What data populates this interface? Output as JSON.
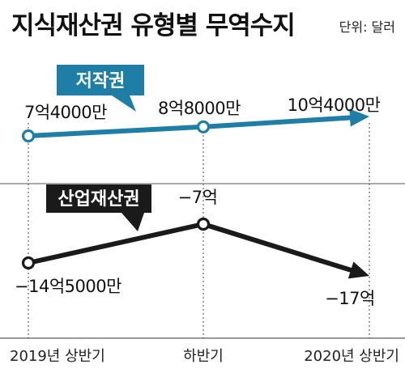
{
  "title": "지식재산권 유형별 무역수지",
  "unit": "단위: 달러",
  "colors": {
    "copyright": "#1f7ea6",
    "industrial": "#1a1a1a",
    "label_box_copyright": "#1f7ea6",
    "label_box_industrial": "#1a1a1a"
  },
  "chart_data": {
    "type": "line",
    "categories": [
      "2019년 상반기",
      "하반기",
      "2020년 상반기"
    ],
    "unit": "달러",
    "series": [
      {
        "name": "저작권",
        "values": [
          740000000,
          880000000,
          1040000000
        ],
        "labels": [
          "7억4000만",
          "8억8000만",
          "10억4000만"
        ]
      },
      {
        "name": "산업재산권",
        "values": [
          -1450000000,
          -700000000,
          -1700000000
        ],
        "labels": [
          "−14억5000만",
          "−7억",
          "−17억"
        ]
      }
    ]
  }
}
